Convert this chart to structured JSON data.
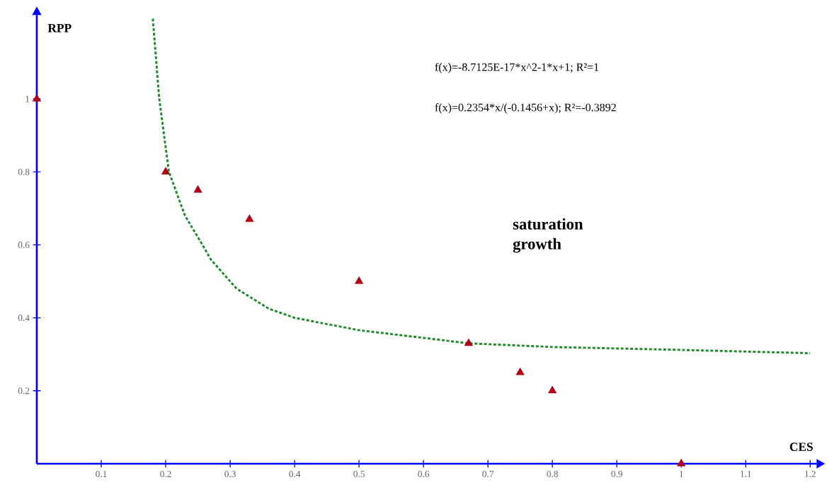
{
  "chart_data": {
    "type": "scatter",
    "xlabel": "CES",
    "ylabel": "RPP",
    "xlim": [
      0,
      1.21
    ],
    "ylim": [
      0,
      1.23
    ],
    "xticks": [
      0.1,
      0.2,
      0.3,
      0.4,
      0.5,
      0.6,
      0.7,
      0.8,
      0.9,
      1,
      1.1,
      1.2
    ],
    "yticks": [
      0.2,
      0.4,
      0.6,
      0.8,
      1
    ],
    "annotations": [
      "f(x)=-8.7125E-17*x^2-1*x+1; R²=1",
      "f(x)=0.2354*x/(-0.1456+x); R²=-0.3892",
      "saturation growth"
    ],
    "series": [
      {
        "color": "#b00018",
        "marker": "triangle",
        "x": [
          0,
          0.2,
          0.25,
          0.33,
          0.5,
          0.67,
          0.75,
          0.8,
          1
        ],
        "values": [
          1,
          0.8,
          0.75,
          0.67,
          0.5,
          0.33,
          0.25,
          0.2,
          0
        ]
      },
      {
        "type": "line",
        "color": "#1e8c2a",
        "marker": "none",
        "line_style": "dashed",
        "x": [
          0.18,
          0.19,
          0.205,
          0.23,
          0.257,
          0.27,
          0.31,
          0.36,
          0.4,
          0.5,
          0.6,
          0.67,
          0.8,
          1.0,
          1.2
        ],
        "values": [
          1.22,
          1.0,
          0.8,
          0.68,
          0.6,
          0.56,
          0.48,
          0.425,
          0.4,
          0.366,
          0.345,
          0.33,
          0.32,
          0.312,
          0.303
        ]
      }
    ]
  }
}
